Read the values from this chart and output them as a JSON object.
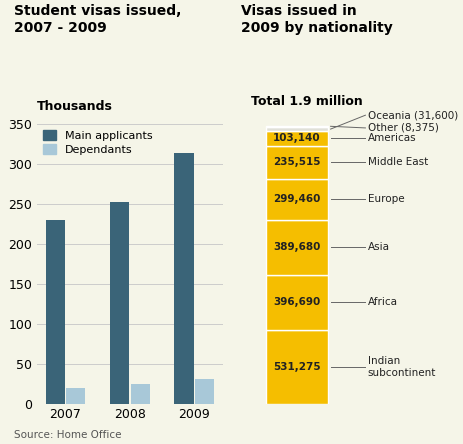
{
  "left_title": "Student visas issued,\n2007 - 2009",
  "right_title": "Visas issued in\n2009 by nationality",
  "left_ylabel": "Thousands",
  "left_years": [
    "2007",
    "2008",
    "2009"
  ],
  "main_applicants": [
    230,
    253,
    314
  ],
  "dependants": [
    20,
    25,
    31
  ],
  "main_color": "#3a6478",
  "dep_color": "#a8c8d8",
  "bar_ylim": [
    0,
    350
  ],
  "bar_yticks": [
    0,
    50,
    100,
    150,
    200,
    250,
    300,
    350
  ],
  "stacked_values": [
    531275,
    396690,
    389680,
    299460,
    235515,
    103140
  ],
  "stacked_labels": [
    "531,275",
    "396,690",
    "389,680",
    "299,460",
    "235,515",
    "103,140"
  ],
  "stacked_annotations": [
    "Indian\nsubcontinent",
    "Africa",
    "Asia",
    "Europe",
    "Middle East",
    "Americas"
  ],
  "extra_labels_text": [
    "Oceania (31,600)",
    "Other (8,375)"
  ],
  "extra_values": [
    31600,
    8375
  ],
  "stacked_color": "#f5be00",
  "extra_color": "#e0e0d8",
  "right_subtitle": "Total 1.9 million",
  "source_text": "Source: Home Office",
  "bg_color": "#f5f5e8",
  "grid_color": "#cccccc",
  "line_color": "#666666",
  "text_color": "#222222"
}
